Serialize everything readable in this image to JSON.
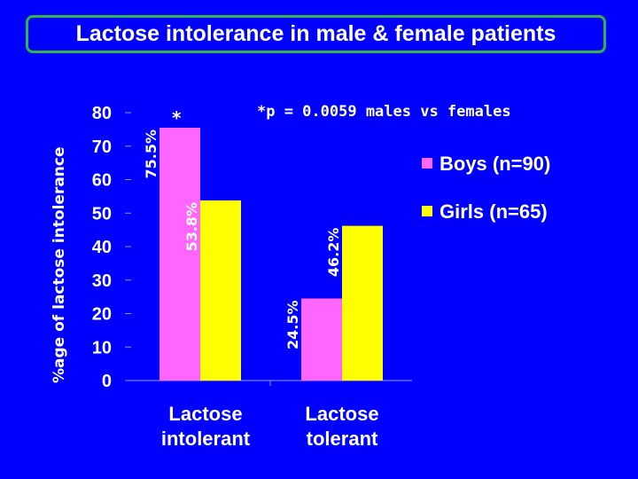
{
  "chart_data": {
    "type": "bar",
    "title": "Lactose intolerance in male & female patients",
    "ylabel": "%age of lactose intolerance",
    "xlabel": "",
    "ylim": [
      0,
      80
    ],
    "yticks": [
      "0",
      "10",
      "20",
      "30",
      "40",
      "50",
      "60",
      "70",
      "80"
    ],
    "categories": [
      {
        "line1": "Lactose",
        "line2": "intolerant"
      },
      {
        "line1": "Lactose",
        "line2": "tolerant"
      }
    ],
    "series": [
      {
        "name": "Boys (n=90)",
        "color": "#ff66ff",
        "values": [
          75.5,
          24.5
        ],
        "labels": [
          "75.5%",
          "24.5%"
        ]
      },
      {
        "name": "Girls (n=65)",
        "color": "#ffff00",
        "values": [
          53.8,
          46.2
        ],
        "labels": [
          "53.8%",
          "46.2%"
        ]
      }
    ],
    "annotation": "*p = 0.0059 males vs females",
    "significance_marker": "*",
    "legend_position": "right"
  }
}
